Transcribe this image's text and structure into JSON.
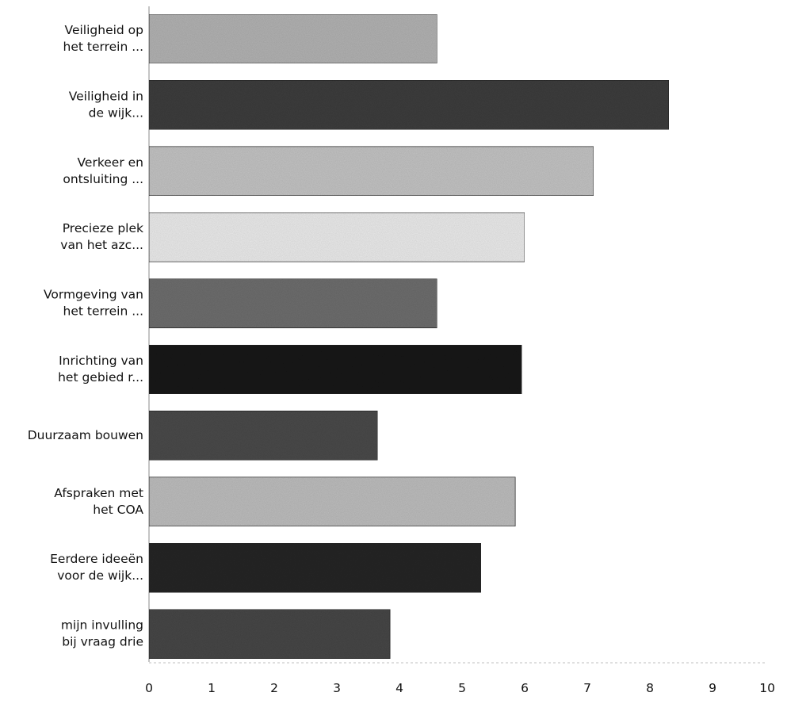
{
  "chart_data": {
    "type": "bar",
    "orientation": "horizontal",
    "categories": [
      [
        "Veiligheid op",
        "het terrein ..."
      ],
      [
        "Veiligheid in",
        "de wijk..."
      ],
      [
        "Verkeer en",
        "ontsluiting ..."
      ],
      [
        "Precieze plek",
        "van het azc..."
      ],
      [
        "Vormgeving van",
        "het terrein ..."
      ],
      [
        "Inrichting van",
        "het gebied r..."
      ],
      [
        "Duurzaam bouwen"
      ],
      [
        "Afspraken met",
        "het COA"
      ],
      [
        "Eerdere ideeën",
        "voor de wijk..."
      ],
      [
        "mijn invulling",
        "bij vraag drie"
      ]
    ],
    "values": [
      4.6,
      8.3,
      7.1,
      6.0,
      4.6,
      5.95,
      3.65,
      5.85,
      5.3,
      3.85
    ],
    "bar_colors": [
      "#b3b3b3",
      "#3d3d3d",
      "#c4c4c4",
      "#ececec",
      "#6e6e6e",
      "#151515",
      "#4a4a4a",
      "#bebebe",
      "#262626",
      "#474747"
    ],
    "xlim": [
      0,
      10
    ],
    "xticks": [
      "0",
      "1",
      "2",
      "3",
      "4",
      "5",
      "6",
      "7",
      "8",
      "9",
      "10"
    ],
    "title": "",
    "xlabel": "",
    "ylabel": "",
    "grid": false,
    "legend": "none"
  }
}
